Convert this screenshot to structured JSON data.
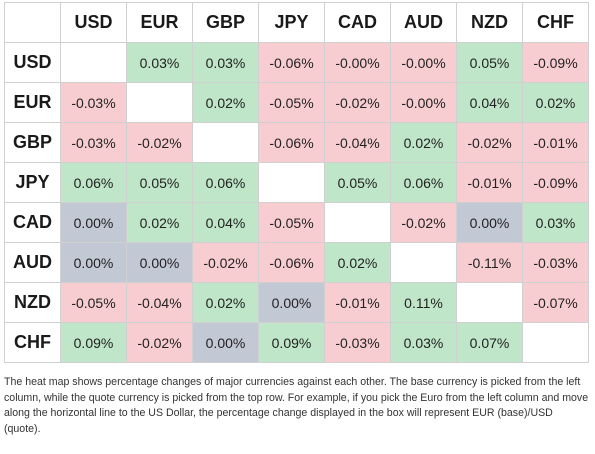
{
  "colors": {
    "positive": "#bfe6c9",
    "negative": "#f8cdd1",
    "zero": "#c2c8d4"
  },
  "currencies": [
    "USD",
    "EUR",
    "GBP",
    "JPY",
    "CAD",
    "AUD",
    "NZD",
    "CHF"
  ],
  "rows": [
    {
      "base": "USD",
      "cells": [
        null,
        "0.03%",
        "0.03%",
        "-0.06%",
        "-0.00%",
        "-0.00%",
        "0.05%",
        "-0.09%"
      ],
      "tones": [
        "empty",
        "pos",
        "pos",
        "neg",
        "neg",
        "neg",
        "pos",
        "neg"
      ]
    },
    {
      "base": "EUR",
      "cells": [
        "-0.03%",
        null,
        "0.02%",
        "-0.05%",
        "-0.02%",
        "-0.00%",
        "0.04%",
        "0.02%"
      ],
      "tones": [
        "neg",
        "empty",
        "pos",
        "neg",
        "neg",
        "neg",
        "pos",
        "pos"
      ]
    },
    {
      "base": "GBP",
      "cells": [
        "-0.03%",
        "-0.02%",
        null,
        "-0.06%",
        "-0.04%",
        "0.02%",
        "-0.02%",
        "-0.01%"
      ],
      "tones": [
        "neg",
        "neg",
        "empty",
        "neg",
        "neg",
        "pos",
        "neg",
        "neg"
      ]
    },
    {
      "base": "JPY",
      "cells": [
        "0.06%",
        "0.05%",
        "0.06%",
        null,
        "0.05%",
        "0.06%",
        "-0.01%",
        "-0.09%"
      ],
      "tones": [
        "pos",
        "pos",
        "pos",
        "empty",
        "pos",
        "pos",
        "neg",
        "neg"
      ]
    },
    {
      "base": "CAD",
      "cells": [
        "0.00%",
        "0.02%",
        "0.04%",
        "-0.05%",
        null,
        "-0.02%",
        "0.00%",
        "0.03%"
      ],
      "tones": [
        "zero",
        "pos",
        "pos",
        "neg",
        "empty",
        "neg",
        "zero",
        "pos"
      ]
    },
    {
      "base": "AUD",
      "cells": [
        "0.00%",
        "0.00%",
        "-0.02%",
        "-0.06%",
        "0.02%",
        null,
        "-0.11%",
        "-0.03%"
      ],
      "tones": [
        "zero",
        "zero",
        "neg",
        "neg",
        "pos",
        "empty",
        "neg",
        "neg"
      ]
    },
    {
      "base": "NZD",
      "cells": [
        "-0.05%",
        "-0.04%",
        "0.02%",
        "0.00%",
        "-0.01%",
        "0.11%",
        null,
        "-0.07%"
      ],
      "tones": [
        "neg",
        "neg",
        "pos",
        "zero",
        "neg",
        "pos",
        "empty",
        "neg"
      ]
    },
    {
      "base": "CHF",
      "cells": [
        "0.09%",
        "-0.02%",
        "0.00%",
        "0.09%",
        "-0.03%",
        "0.03%",
        "0.07%",
        null
      ],
      "tones": [
        "pos",
        "neg",
        "zero",
        "pos",
        "neg",
        "pos",
        "pos",
        "empty"
      ]
    }
  ],
  "caption": "The heat map shows percentage changes of major currencies against each other. The base currency is picked from the left column, while the quote currency is picked from the top row. For example, if you pick the Euro from the left column and move along the horizontal line to the US Dollar, the percentage change displayed in the box will represent EUR (base)/USD (quote)."
}
